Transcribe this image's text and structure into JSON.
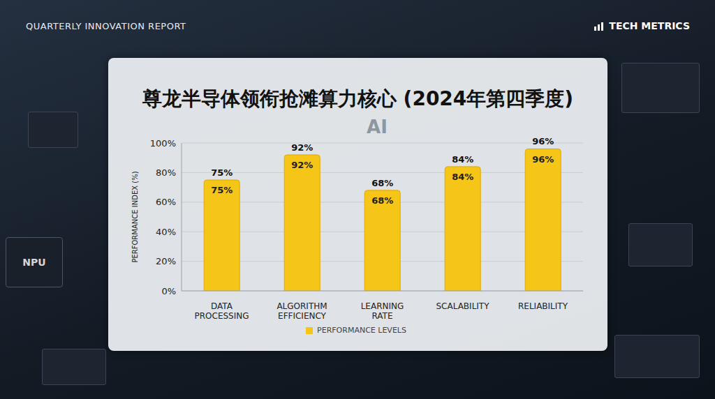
{
  "header": {
    "left": "QUARTERLY INNOVATION REPORT",
    "right": "TECH METRICS"
  },
  "chart_data": {
    "type": "bar",
    "title": "尊龙半导体领衔抢滩算力核心 (2024年第四季度)",
    "y_label": "PERFORMANCE INDEX (%)",
    "annotations": [
      "AI",
      "NPU"
    ],
    "categories": [
      "DATA PROCESSING",
      "ALGORITHM EFFICIENCY",
      "LEARNING RATE",
      "SCALABILITY",
      "RELIABILITY"
    ],
    "series": [
      {
        "name": "PERFORMANCE LEVELS",
        "color": "#f5c518",
        "values": [
          75,
          92,
          68,
          84,
          96
        ],
        "value_labels": [
          "75%",
          "92%",
          "68%",
          "84%",
          "96%"
        ]
      }
    ],
    "ylim": [
      0,
      100
    ],
    "yticks": [
      {
        "value": 0,
        "label": "0%"
      },
      {
        "value": 20,
        "label": "20%"
      },
      {
        "value": 40,
        "label": "40%"
      },
      {
        "value": 60,
        "label": "60%"
      },
      {
        "value": 80,
        "label": "80%"
      },
      {
        "value": 100,
        "label": "100%"
      }
    ],
    "grid": true,
    "data_labels": true,
    "legend": "bottom"
  }
}
